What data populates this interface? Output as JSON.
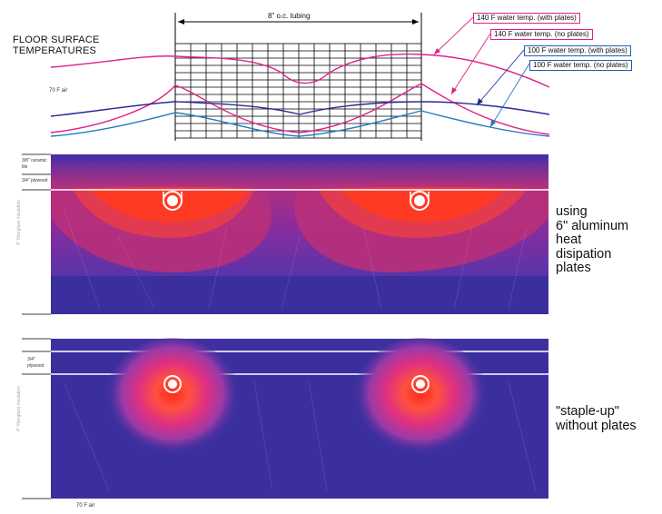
{
  "header": {
    "title_line1": "FLOOR SURFACE",
    "title_line2": "TEMPERATURES",
    "tubing_label": "8\" o.c. tubing",
    "air_label_top": "70 F air"
  },
  "callouts": [
    {
      "text": "140 F water temp. (with plates)",
      "color": "#e0208a"
    },
    {
      "text": "140 F water temp. (no plates)",
      "color": "#e0208a"
    },
    {
      "text": "100 F water temp. (with plates)",
      "color": "#1f5fb0"
    },
    {
      "text": "100 F water temp. (no plates)",
      "color": "#1f5fb0"
    }
  ],
  "panel1": {
    "label": "using\n6\" aluminum\nheat\ndisipation\nplates",
    "layer_labels": [
      "3/8\" ceramic tile",
      "3/4\" plywood",
      "4\" fiberglass insulation"
    ]
  },
  "panel2": {
    "label": "\"staple-up\"\nwithout plates",
    "layer_labels": [
      "3/4\"\nplywood",
      "4\" fiberglass insulation"
    ],
    "air_label_bottom": "70 F air"
  },
  "colors": {
    "hot": "#ff2a1a",
    "warm": "#d8246a",
    "mid": "#8a2c9c",
    "cool": "#3b2f9e",
    "curve140": "#e0208a",
    "curve100with": "#2a2a9a",
    "curve100no": "#1f7ac0"
  }
}
